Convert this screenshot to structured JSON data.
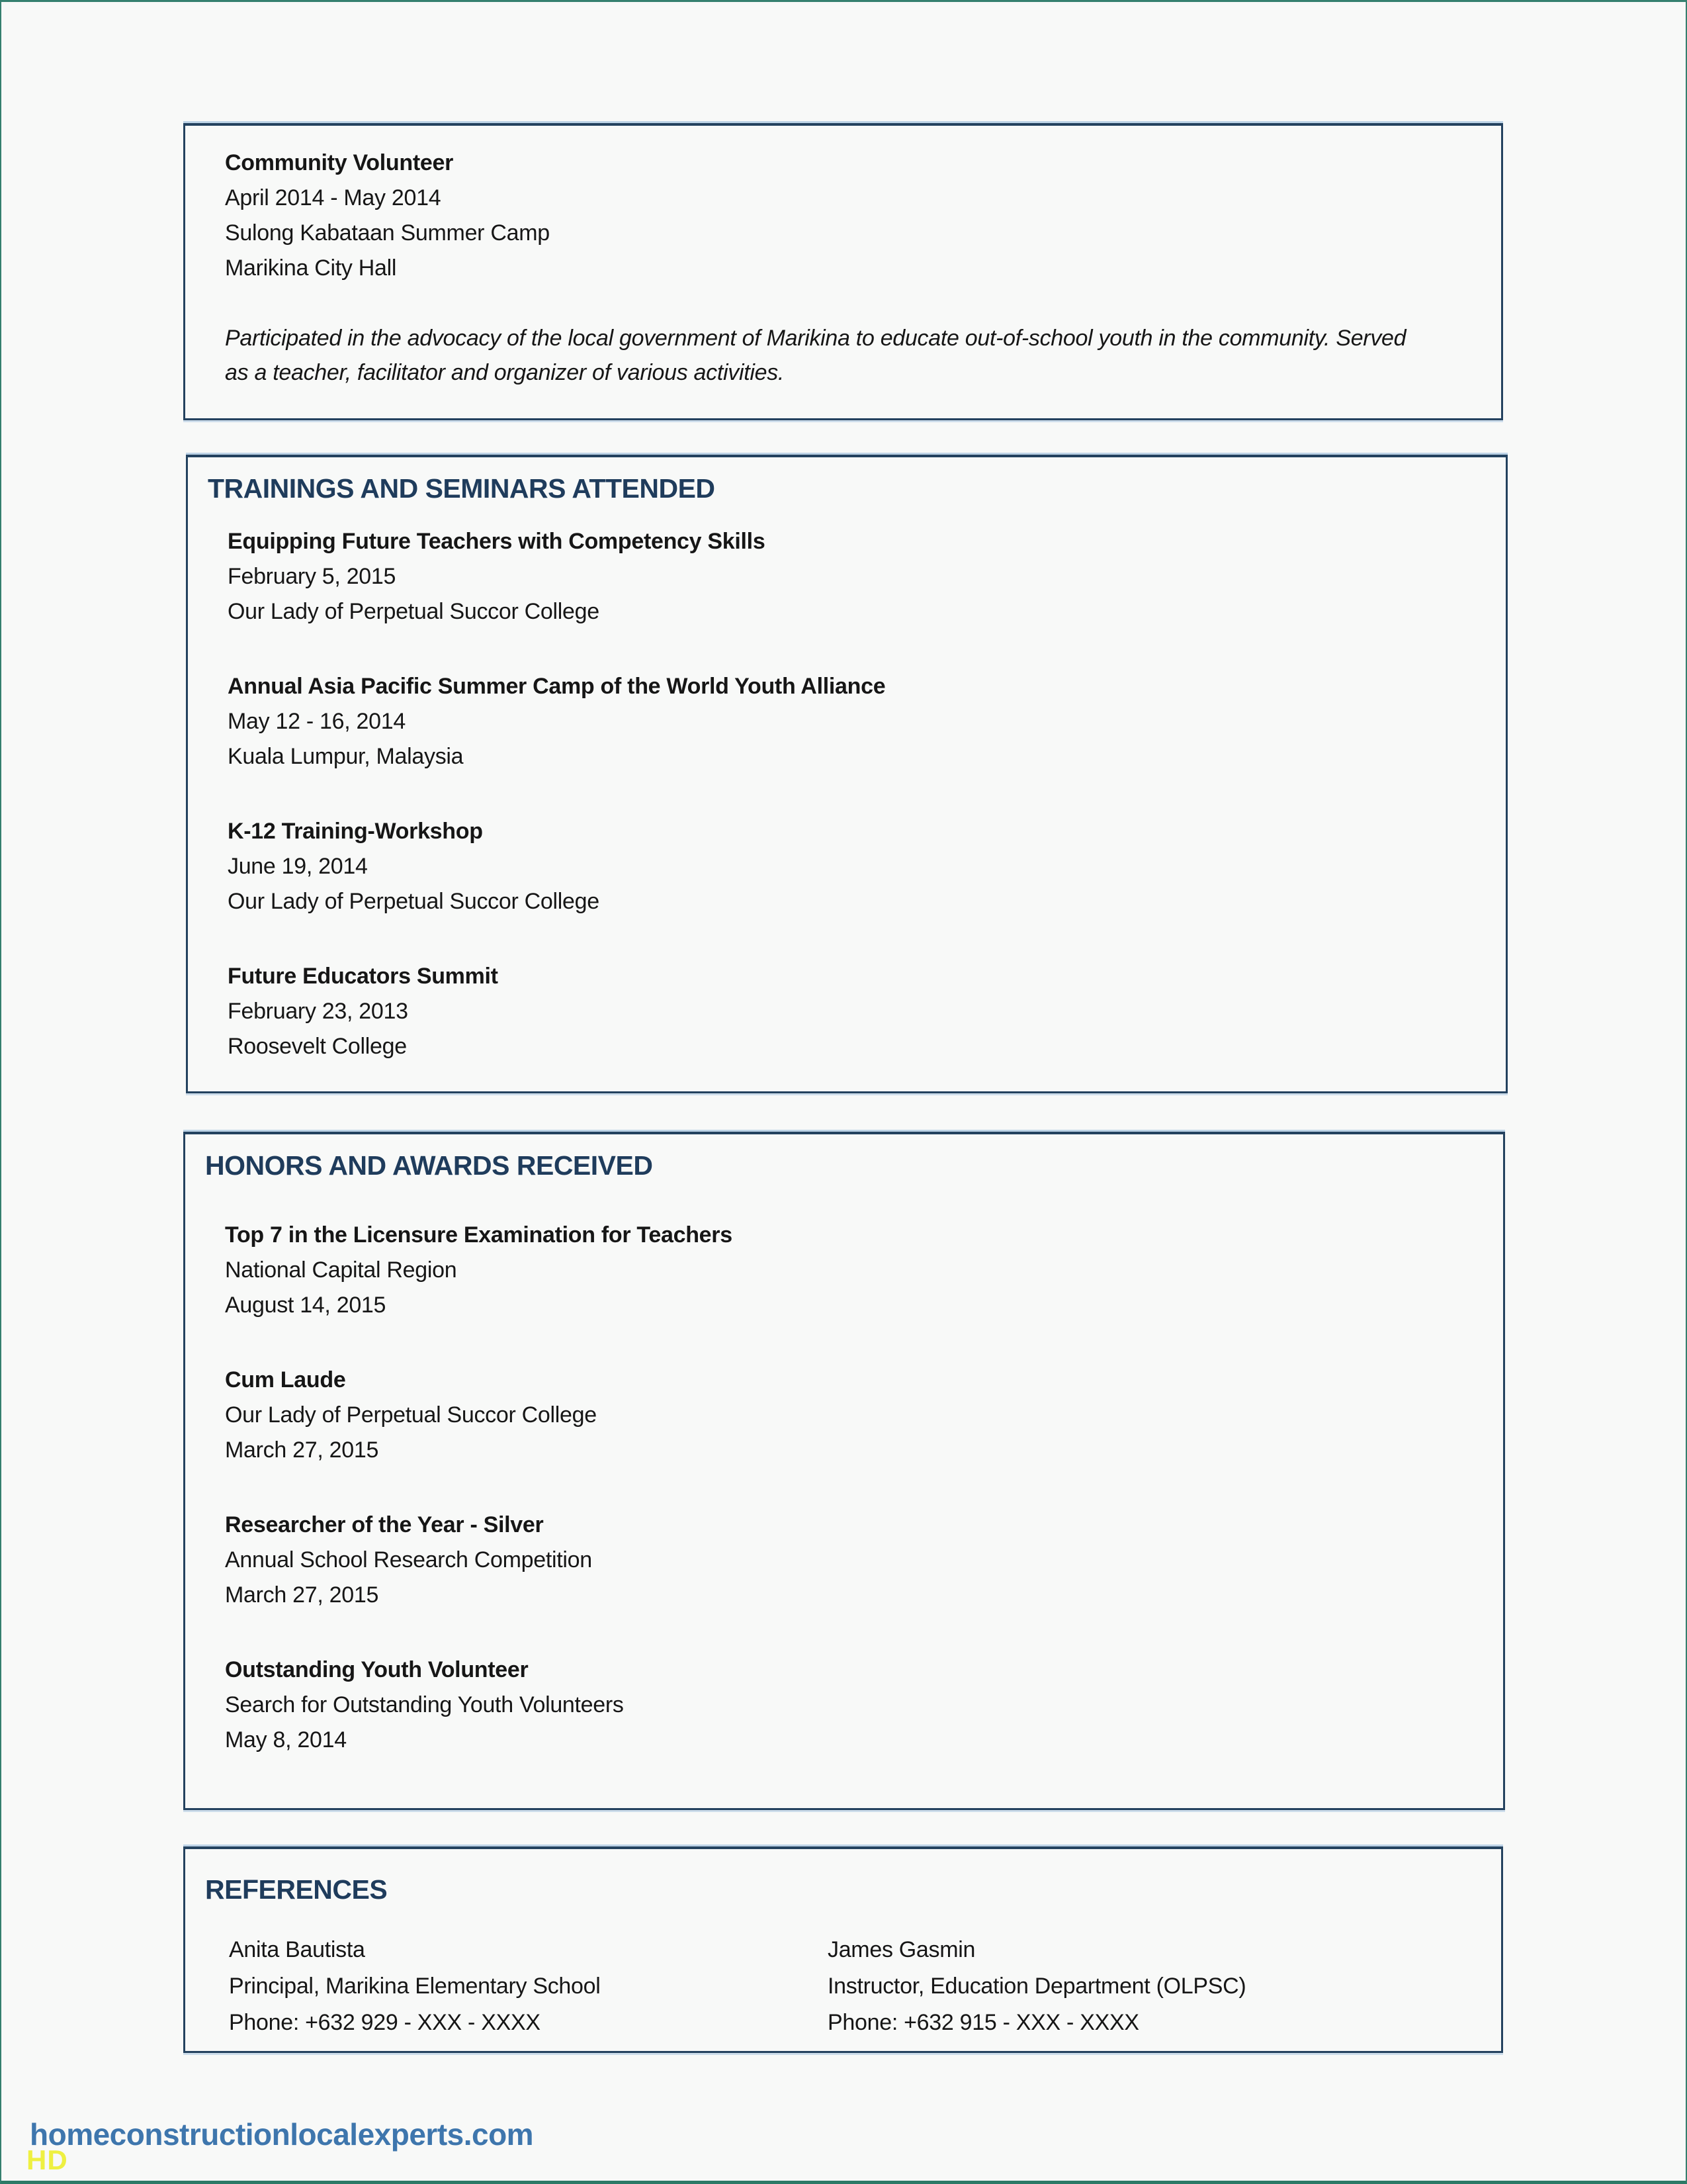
{
  "experience": {
    "title": "Community Volunteer",
    "dates": "April 2014 - May 2014",
    "organization": "Sulong Kabataan Summer Camp",
    "location": "Marikina City Hall",
    "description": "Participated in the advocacy of the local government of Marikina to educate out-of-school youth in the community. Served as a teacher, facilitator and organizer of various activities."
  },
  "trainings": {
    "header": "TRAININGS AND SEMINARS ATTENDED",
    "entries": [
      {
        "title": "Equipping Future Teachers with Competency Skills",
        "date": "February 5, 2015",
        "venue": "Our Lady of Perpetual Succor College"
      },
      {
        "title": "Annual Asia Pacific Summer Camp of the World Youth Alliance",
        "date": "May 12 - 16, 2014",
        "venue": "Kuala Lumpur, Malaysia"
      },
      {
        "title": "K-12 Training-Workshop",
        "date": "June 19, 2014",
        "venue": "Our Lady of Perpetual Succor College"
      },
      {
        "title": "Future Educators Summit",
        "date": "February 23, 2013",
        "venue": "Roosevelt College"
      }
    ]
  },
  "honors": {
    "header": "HONORS AND AWARDS RECEIVED",
    "entries": [
      {
        "title": "Top 7 in the Licensure Examination for Teachers",
        "detail": "National Capital Region",
        "date": "August 14, 2015"
      },
      {
        "title": "Cum Laude",
        "detail": "Our Lady of Perpetual Succor College",
        "date": "March 27, 2015"
      },
      {
        "title": "Researcher of the Year - Silver",
        "detail": "Annual School Research Competition",
        "date": "March 27, 2015"
      },
      {
        "title": "Outstanding Youth Volunteer",
        "detail": "Search for Outstanding Youth Volunteers",
        "date": "May 8, 2014"
      }
    ]
  },
  "references": {
    "header": "REFERENCES",
    "people": [
      {
        "name": "Anita Bautista",
        "title": "Principal, Marikina Elementary School",
        "phone": "Phone: +632 929 - XXX - XXXX"
      },
      {
        "name": "James Gasmin",
        "title": "Instructor, Education Department (OLPSC)",
        "phone": "Phone: +632 915 - XXX - XXXX"
      }
    ]
  },
  "watermark": {
    "text": "homeconstructionlocalexperts.com",
    "badge": "HD"
  },
  "colors": {
    "page_frame_teal": "#35806f",
    "box_border_navy": "#24425f",
    "section_header_navy": "#1f3c5c",
    "body_text": "#161616",
    "watermark_blue": "#3e76ad",
    "watermark_badge_yellow": "#eef041",
    "page_background": "#f8f9f8"
  }
}
